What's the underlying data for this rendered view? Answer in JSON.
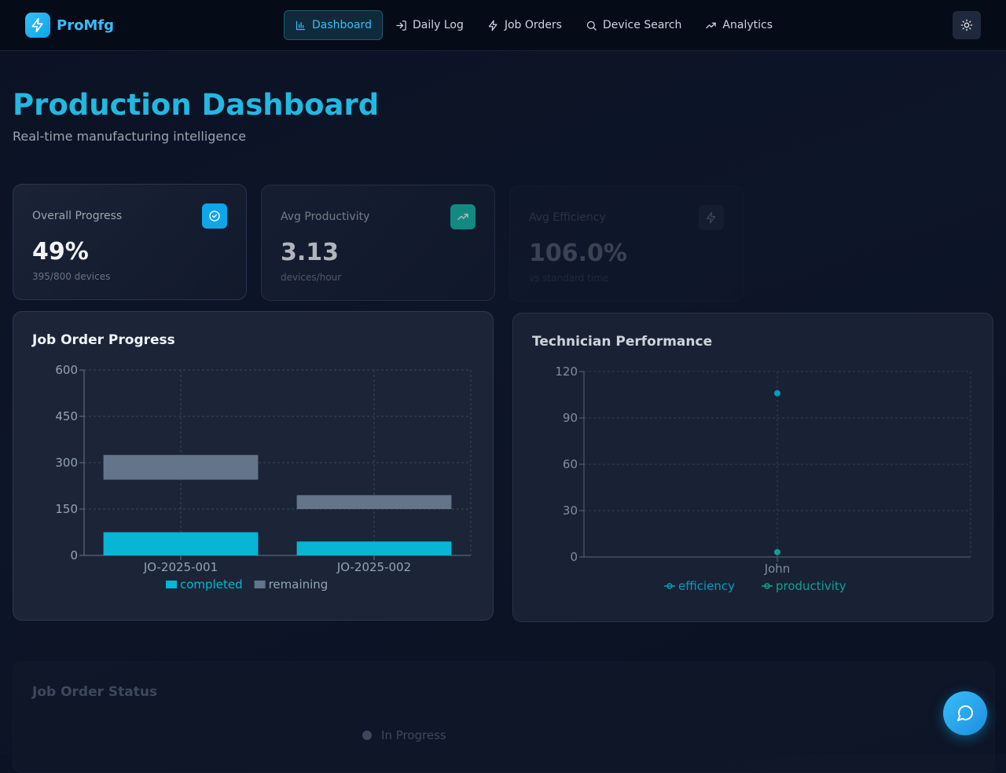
{
  "brand": {
    "name": "ProMfg"
  },
  "nav": [
    {
      "label": "Dashboard",
      "icon": "bar-chart-icon",
      "active": true
    },
    {
      "label": "Daily Log",
      "icon": "log-in-icon"
    },
    {
      "label": "Job Orders",
      "icon": "lightning-icon"
    },
    {
      "label": "Device Search",
      "icon": "search-icon"
    },
    {
      "label": "Analytics",
      "icon": "trending-up-icon"
    }
  ],
  "header": {
    "title": "Production Dashboard",
    "subtitle": "Real-time manufacturing intelligence"
  },
  "stats": [
    {
      "label": "Overall Progress",
      "value": "49%",
      "sub": "395/800 devices",
      "icon": "check-circle-icon",
      "color": "#0ea5e9"
    },
    {
      "label": "Avg Productivity",
      "value": "3.13",
      "sub": "devices/hour",
      "icon": "trending-up-icon",
      "color": "#14b8a6"
    },
    {
      "label": "Avg Efficiency",
      "value": "106.0%",
      "sub": "vs standard time",
      "icon": "lightning-icon",
      "color": "#334155"
    }
  ],
  "chart_data": [
    {
      "type": "bar",
      "title": "Job Order Progress",
      "categories": [
        "JO-2025-001",
        "JO-2025-002"
      ],
      "series": [
        {
          "name": "completed",
          "color": "#06b6d4",
          "values": [
            [
              0,
              75
            ],
            [
              0,
              45
            ]
          ]
        },
        {
          "name": "remaining",
          "color": "#64748b",
          "values": [
            [
              245,
              325
            ],
            [
              150,
              195
            ]
          ]
        }
      ],
      "yticks": [
        0,
        150,
        300,
        450,
        600
      ],
      "ylim": [
        0,
        600
      ],
      "grid": true,
      "legend": "bottom"
    },
    {
      "type": "scatter",
      "title": "Technician Performance",
      "categories": [
        "John"
      ],
      "series": [
        {
          "name": "efficiency",
          "color": "#06b6d4",
          "values": [
            106
          ]
        },
        {
          "name": "productivity",
          "color": "#14b8a6",
          "values": [
            3.13
          ]
        }
      ],
      "yticks": [
        0,
        30,
        60,
        90,
        120
      ],
      "ylim": [
        0,
        120
      ],
      "grid": true,
      "legend": "bottom"
    }
  ],
  "status": {
    "title": "Job Order Status",
    "legend": [
      {
        "label": "In Progress",
        "color": "#64748b"
      }
    ]
  }
}
